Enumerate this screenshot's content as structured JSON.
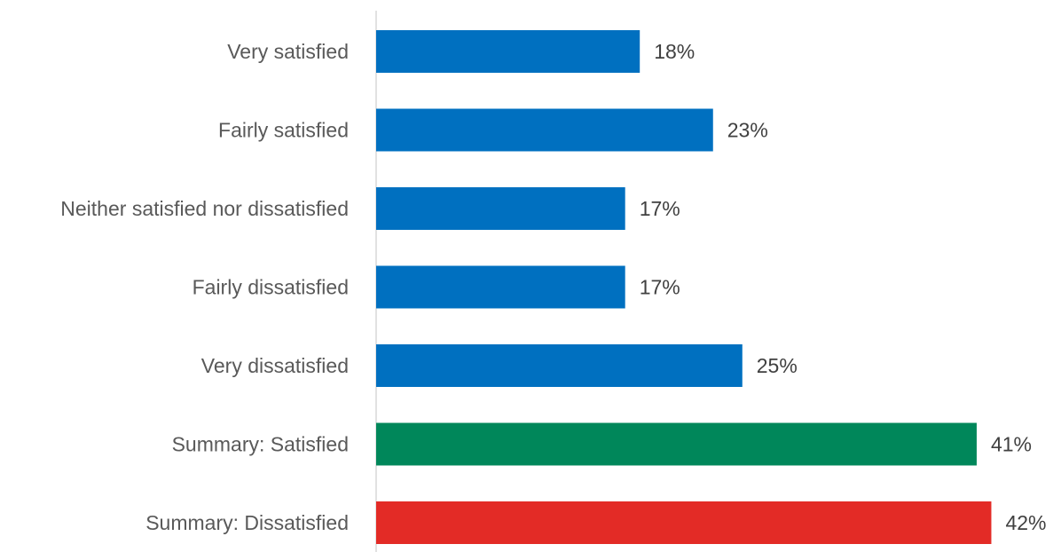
{
  "chart_data": {
    "type": "bar",
    "orientation": "horizontal",
    "categories": [
      "Very satisfied",
      "Fairly satisfied",
      "Neither satisfied nor dissatisfied",
      "Fairly dissatisfied",
      "Very dissatisfied",
      "Summary: Satisfied",
      "Summary: Dissatisfied"
    ],
    "values": [
      18,
      23,
      17,
      17,
      25,
      41,
      42
    ],
    "value_labels": [
      "18%",
      "23%",
      "17%",
      "17%",
      "25%",
      "41%",
      "42%"
    ],
    "bar_colors": [
      "#0070c0",
      "#0070c0",
      "#0070c0",
      "#0070c0",
      "#0070c0",
      "#00875a",
      "#e32b26"
    ],
    "xlim": [
      0,
      45
    ],
    "grid": false,
    "legend": "none",
    "axis_color": "#d9d9d9"
  }
}
